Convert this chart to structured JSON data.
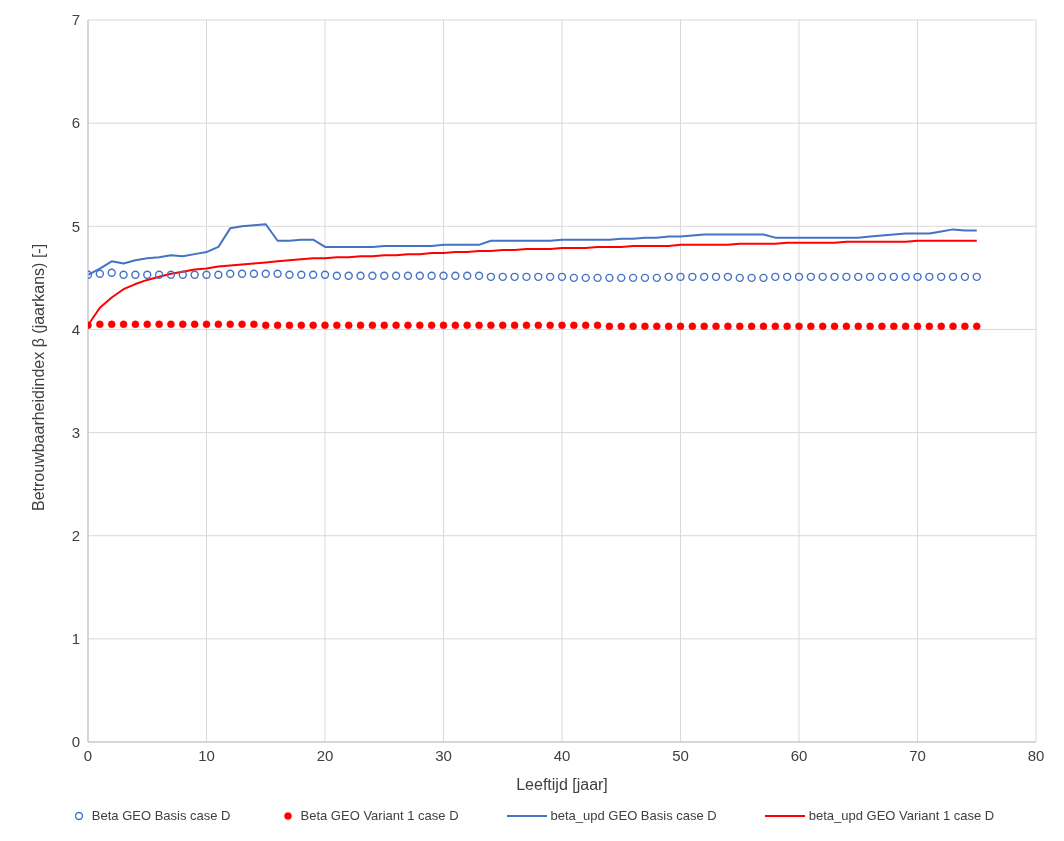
{
  "chart_data": {
    "type": "line",
    "xlabel": "Leeftijd [jaar]",
    "ylabel": "Betrouwbaarheidindex β (jaarkans) [-]",
    "xlim": [
      0,
      80
    ],
    "xticks": [
      0,
      10,
      20,
      30,
      40,
      50,
      60,
      70,
      80
    ],
    "ylim": [
      0,
      7
    ],
    "yticks": [
      0,
      1,
      2,
      3,
      4,
      5,
      6,
      7
    ],
    "grid": true,
    "legend": "bottom",
    "x": [
      0,
      1,
      2,
      3,
      4,
      5,
      6,
      7,
      8,
      9,
      10,
      11,
      12,
      13,
      14,
      15,
      16,
      17,
      18,
      19,
      20,
      21,
      22,
      23,
      24,
      25,
      26,
      27,
      28,
      29,
      30,
      31,
      32,
      33,
      34,
      35,
      36,
      37,
      38,
      39,
      40,
      41,
      42,
      43,
      44,
      45,
      46,
      47,
      48,
      49,
      50,
      51,
      52,
      53,
      54,
      55,
      56,
      57,
      58,
      59,
      60,
      61,
      62,
      63,
      64,
      65,
      66,
      67,
      68,
      69,
      70,
      71,
      72,
      73,
      74,
      75
    ],
    "series": [
      {
        "name": "Beta GEO Basis case D",
        "type": "scatter",
        "marker": "circle",
        "color": "#4472c4",
        "values": [
          4.53,
          4.54,
          4.55,
          4.53,
          4.53,
          4.53,
          4.53,
          4.53,
          4.53,
          4.53,
          4.53,
          4.53,
          4.54,
          4.54,
          4.54,
          4.54,
          4.54,
          4.53,
          4.53,
          4.53,
          4.53,
          4.52,
          4.52,
          4.52,
          4.52,
          4.52,
          4.52,
          4.52,
          4.52,
          4.52,
          4.52,
          4.52,
          4.52,
          4.52,
          4.51,
          4.51,
          4.51,
          4.51,
          4.51,
          4.51,
          4.51,
          4.5,
          4.5,
          4.5,
          4.5,
          4.5,
          4.5,
          4.5,
          4.5,
          4.51,
          4.51,
          4.51,
          4.51,
          4.51,
          4.51,
          4.5,
          4.5,
          4.5,
          4.51,
          4.51,
          4.51,
          4.51,
          4.51,
          4.51,
          4.51,
          4.51,
          4.51,
          4.51,
          4.51,
          4.51,
          4.51,
          4.51,
          4.51,
          4.51,
          4.51,
          4.51
        ]
      },
      {
        "name": "Beta GEO Variant 1 case D",
        "type": "scatter",
        "marker": "circle",
        "color": "#ff0000",
        "values": [
          4.04,
          4.05,
          4.05,
          4.05,
          4.05,
          4.05,
          4.05,
          4.05,
          4.05,
          4.05,
          4.05,
          4.05,
          4.05,
          4.05,
          4.05,
          4.04,
          4.04,
          4.04,
          4.04,
          4.04,
          4.04,
          4.04,
          4.04,
          4.04,
          4.04,
          4.04,
          4.04,
          4.04,
          4.04,
          4.04,
          4.04,
          4.04,
          4.04,
          4.04,
          4.04,
          4.04,
          4.04,
          4.04,
          4.04,
          4.04,
          4.04,
          4.04,
          4.04,
          4.04,
          4.03,
          4.03,
          4.03,
          4.03,
          4.03,
          4.03,
          4.03,
          4.03,
          4.03,
          4.03,
          4.03,
          4.03,
          4.03,
          4.03,
          4.03,
          4.03,
          4.03,
          4.03,
          4.03,
          4.03,
          4.03,
          4.03,
          4.03,
          4.03,
          4.03,
          4.03,
          4.03,
          4.03,
          4.03,
          4.03,
          4.03,
          4.03
        ]
      },
      {
        "name": "beta_upd GEO Basis case D",
        "marker": "none",
        "color": "#4472c4",
        "values": [
          4.53,
          4.59,
          4.66,
          4.64,
          4.67,
          4.69,
          4.7,
          4.72,
          4.71,
          4.73,
          4.75,
          4.8,
          4.98,
          5.0,
          5.01,
          5.02,
          4.86,
          4.86,
          4.87,
          4.87,
          4.8,
          4.8,
          4.8,
          4.8,
          4.8,
          4.81,
          4.81,
          4.81,
          4.81,
          4.81,
          4.82,
          4.82,
          4.82,
          4.82,
          4.86,
          4.86,
          4.86,
          4.86,
          4.86,
          4.86,
          4.87,
          4.87,
          4.87,
          4.87,
          4.87,
          4.88,
          4.88,
          4.89,
          4.89,
          4.9,
          4.9,
          4.91,
          4.92,
          4.92,
          4.92,
          4.92,
          4.92,
          4.92,
          4.89,
          4.89,
          4.89,
          4.89,
          4.89,
          4.89,
          4.89,
          4.89,
          4.9,
          4.91,
          4.92,
          4.93,
          4.93,
          4.93,
          4.95,
          4.97,
          4.96,
          4.96
        ]
      },
      {
        "name": "beta_upd GEO Variant 1 case D",
        "marker": "none",
        "color": "#ff0000",
        "values": [
          4.04,
          4.21,
          4.31,
          4.39,
          4.44,
          4.48,
          4.51,
          4.54,
          4.56,
          4.58,
          4.59,
          4.61,
          4.62,
          4.63,
          4.64,
          4.65,
          4.66,
          4.67,
          4.68,
          4.69,
          4.69,
          4.7,
          4.7,
          4.71,
          4.71,
          4.72,
          4.72,
          4.73,
          4.73,
          4.74,
          4.74,
          4.75,
          4.75,
          4.76,
          4.76,
          4.77,
          4.77,
          4.78,
          4.78,
          4.78,
          4.79,
          4.79,
          4.79,
          4.8,
          4.8,
          4.8,
          4.81,
          4.81,
          4.81,
          4.81,
          4.82,
          4.82,
          4.82,
          4.82,
          4.82,
          4.83,
          4.83,
          4.83,
          4.83,
          4.84,
          4.84,
          4.84,
          4.84,
          4.84,
          4.85,
          4.85,
          4.85,
          4.85,
          4.85,
          4.85,
          4.86,
          4.86,
          4.86,
          4.86,
          4.86,
          4.86
        ]
      }
    ]
  }
}
